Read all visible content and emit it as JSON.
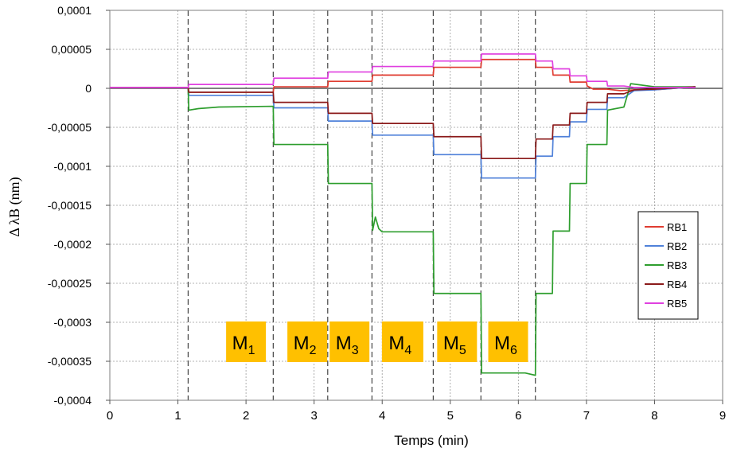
{
  "chart_data": {
    "type": "line",
    "xlabel": "Temps (min)",
    "ylabel": "Δ λB (nm)",
    "xlim": [
      0,
      9
    ],
    "ylim": [
      -0.0004,
      0.0001
    ],
    "x_ticks": [
      0,
      1,
      2,
      3,
      4,
      5,
      6,
      7,
      8,
      9
    ],
    "x_tick_labels": [
      "0",
      "1",
      "2",
      "3",
      "4",
      "5",
      "6",
      "7",
      "8",
      "9"
    ],
    "y_ticks": [
      0.0001,
      5e-05,
      0,
      -5e-05,
      -0.0001,
      -0.00015,
      -0.0002,
      -0.00025,
      -0.0003,
      -0.00035,
      -0.0004
    ],
    "y_tick_labels": [
      "0,0001",
      "0,00005",
      "0",
      "-0,00005",
      "-0,0001",
      "-0,00015",
      "-0,0002",
      "-0,00025",
      "-0,0003",
      "-0,00035",
      "-0,0004"
    ],
    "grid": true,
    "grid_style": "dotted",
    "legend_position": "right",
    "phase_boundaries": [
      1.15,
      2.4,
      3.2,
      3.85,
      4.75,
      5.45,
      6.25
    ],
    "phases": [
      {
        "name": "M",
        "sub": "1",
        "x_center": 2.0
      },
      {
        "name": "M",
        "sub": "2",
        "x_center": 2.9
      },
      {
        "name": "M",
        "sub": "3",
        "x_center": 3.52
      },
      {
        "name": "M",
        "sub": "4",
        "x_center": 4.3
      },
      {
        "name": "M",
        "sub": "5",
        "x_center": 5.1
      },
      {
        "name": "M",
        "sub": "6",
        "x_center": 5.85
      }
    ],
    "phase_label_color": "#FFC000",
    "series": [
      {
        "name": "RB1",
        "color": "#E03C31",
        "points": [
          [
            0,
            1e-06
          ],
          [
            1.15,
            1e-06
          ],
          [
            1.16,
            -5e-06
          ],
          [
            2.4,
            -5e-06
          ],
          [
            2.41,
            2e-06
          ],
          [
            3.2,
            2e-06
          ],
          [
            3.21,
            9e-06
          ],
          [
            3.85,
            9e-06
          ],
          [
            3.86,
            1.7e-05
          ],
          [
            4.75,
            1.7e-05
          ],
          [
            4.76,
            2.7e-05
          ],
          [
            5.45,
            2.7e-05
          ],
          [
            5.46,
            3.7e-05
          ],
          [
            6.25,
            3.7e-05
          ],
          [
            6.26,
            2.7e-05
          ],
          [
            6.5,
            2.7e-05
          ],
          [
            6.51,
            1.7e-05
          ],
          [
            6.75,
            1.7e-05
          ],
          [
            6.76,
            8e-06
          ],
          [
            7.0,
            8e-06
          ],
          [
            7.01,
            3e-06
          ],
          [
            7.1,
            -1e-06
          ],
          [
            7.3,
            -1e-06
          ],
          [
            7.5,
            -3e-06
          ],
          [
            7.7,
            -2e-06
          ],
          [
            8.0,
            -2e-06
          ],
          [
            8.6,
            2e-06
          ]
        ]
      },
      {
        "name": "RB2",
        "color": "#4F81D9",
        "points": [
          [
            0,
            1e-06
          ],
          [
            1.15,
            1e-06
          ],
          [
            1.16,
            -9e-06
          ],
          [
            2.4,
            -9e-06
          ],
          [
            2.41,
            -2.5e-05
          ],
          [
            3.2,
            -2.5e-05
          ],
          [
            3.21,
            -4.2e-05
          ],
          [
            3.85,
            -4.2e-05
          ],
          [
            3.86,
            -6e-05
          ],
          [
            4.75,
            -6e-05
          ],
          [
            4.76,
            -8.5e-05
          ],
          [
            5.45,
            -8.5e-05
          ],
          [
            5.46,
            -0.000115
          ],
          [
            6.25,
            -0.000115
          ],
          [
            6.26,
            -8.7e-05
          ],
          [
            6.5,
            -8.7e-05
          ],
          [
            6.51,
            -6.2e-05
          ],
          [
            6.75,
            -6.2e-05
          ],
          [
            6.76,
            -4.3e-05
          ],
          [
            7.0,
            -4.3e-05
          ],
          [
            7.01,
            -2.7e-05
          ],
          [
            7.3,
            -2.7e-05
          ],
          [
            7.31,
            -1.2e-05
          ],
          [
            7.55,
            -1.2e-05
          ],
          [
            7.7,
            -3e-06
          ],
          [
            8.0,
            -2e-06
          ],
          [
            8.6,
            2e-06
          ]
        ]
      },
      {
        "name": "RB3",
        "color": "#2E9E2E",
        "points": [
          [
            0,
            1e-06
          ],
          [
            1.15,
            1e-06
          ],
          [
            1.16,
            -2.8e-05
          ],
          [
            1.3,
            -2.6e-05
          ],
          [
            1.6,
            -2.4e-05
          ],
          [
            2.4,
            -2.3e-05
          ],
          [
            2.41,
            -7.2e-05
          ],
          [
            3.2,
            -7.2e-05
          ],
          [
            3.21,
            -0.000122
          ],
          [
            3.85,
            -0.000122
          ],
          [
            3.86,
            -0.000182
          ],
          [
            3.9,
            -0.000165
          ],
          [
            3.95,
            -0.00018
          ],
          [
            4.0,
            -0.000184
          ],
          [
            4.75,
            -0.000184
          ],
          [
            4.76,
            -0.000263
          ],
          [
            5.45,
            -0.000263
          ],
          [
            5.46,
            -0.000365
          ],
          [
            6.1,
            -0.000365
          ],
          [
            6.25,
            -0.000368
          ],
          [
            6.26,
            -0.000263
          ],
          [
            6.5,
            -0.000263
          ],
          [
            6.51,
            -0.000183
          ],
          [
            6.75,
            -0.000183
          ],
          [
            6.76,
            -0.000122
          ],
          [
            7.0,
            -0.000122
          ],
          [
            7.01,
            -7.2e-05
          ],
          [
            7.3,
            -7.2e-05
          ],
          [
            7.31,
            -2.8e-05
          ],
          [
            7.55,
            -2.4e-05
          ],
          [
            7.65,
            6e-06
          ],
          [
            8.0,
            2e-06
          ],
          [
            8.6,
            2e-06
          ]
        ]
      },
      {
        "name": "RB4",
        "color": "#8B1A1A",
        "points": [
          [
            0,
            1e-06
          ],
          [
            1.15,
            1e-06
          ],
          [
            1.16,
            -5e-06
          ],
          [
            2.4,
            -5e-06
          ],
          [
            2.41,
            -1.8e-05
          ],
          [
            3.2,
            -1.8e-05
          ],
          [
            3.21,
            -3.2e-05
          ],
          [
            3.85,
            -3.2e-05
          ],
          [
            3.86,
            -4.5e-05
          ],
          [
            4.75,
            -4.5e-05
          ],
          [
            4.76,
            -6.2e-05
          ],
          [
            5.45,
            -6.2e-05
          ],
          [
            5.46,
            -9e-05
          ],
          [
            6.25,
            -9e-05
          ],
          [
            6.26,
            -6.5e-05
          ],
          [
            6.5,
            -6.5e-05
          ],
          [
            6.51,
            -4.7e-05
          ],
          [
            6.75,
            -4.7e-05
          ],
          [
            6.76,
            -3.2e-05
          ],
          [
            7.0,
            -3.2e-05
          ],
          [
            7.01,
            -1.8e-05
          ],
          [
            7.3,
            -1.8e-05
          ],
          [
            7.31,
            -7e-06
          ],
          [
            7.55,
            -7e-06
          ],
          [
            7.7,
            -2e-06
          ],
          [
            8.0,
            -1e-06
          ],
          [
            8.6,
            2e-06
          ]
        ]
      },
      {
        "name": "RB5",
        "color": "#E040E0",
        "points": [
          [
            0,
            1e-06
          ],
          [
            1.15,
            1e-06
          ],
          [
            1.16,
            5e-06
          ],
          [
            2.4,
            5e-06
          ],
          [
            2.41,
            1.3e-05
          ],
          [
            3.2,
            1.3e-05
          ],
          [
            3.21,
            2.1e-05
          ],
          [
            3.85,
            2.1e-05
          ],
          [
            3.86,
            2.8e-05
          ],
          [
            4.75,
            2.8e-05
          ],
          [
            4.76,
            3.5e-05
          ],
          [
            5.45,
            3.5e-05
          ],
          [
            5.46,
            4.4e-05
          ],
          [
            6.25,
            4.4e-05
          ],
          [
            6.26,
            3.5e-05
          ],
          [
            6.5,
            3.5e-05
          ],
          [
            6.51,
            2.5e-05
          ],
          [
            6.75,
            2.5e-05
          ],
          [
            6.76,
            1.6e-05
          ],
          [
            7.0,
            1.6e-05
          ],
          [
            7.01,
            9e-06
          ],
          [
            7.3,
            9e-06
          ],
          [
            7.31,
            3e-06
          ],
          [
            7.55,
            3e-06
          ],
          [
            7.7,
            1e-06
          ],
          [
            8.6,
            1e-06
          ]
        ]
      }
    ]
  }
}
